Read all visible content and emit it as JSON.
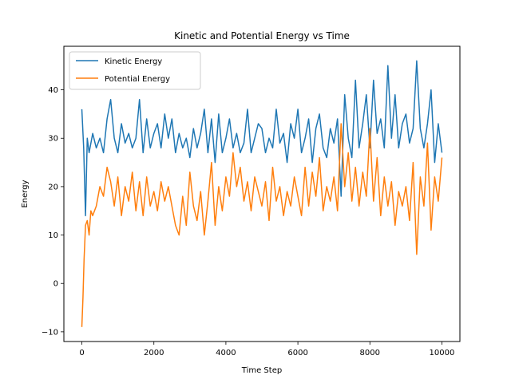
{
  "chart_data": {
    "type": "line",
    "title": "Kinetic and Potential Energy vs Time",
    "xlabel": "Time Step",
    "ylabel": "Energy",
    "xlim": [
      -500,
      10500
    ],
    "ylim": [
      -12,
      49
    ],
    "xticks": [
      0,
      2000,
      4000,
      6000,
      8000,
      10000
    ],
    "yticks": [
      -10,
      0,
      10,
      20,
      30,
      40
    ],
    "xtick_labels": [
      "0",
      "2000",
      "4000",
      "6000",
      "8000",
      "10000"
    ],
    "ytick_labels": [
      "−10",
      "0",
      "10",
      "20",
      "30",
      "40"
    ],
    "grid": false,
    "legend_position": "top-left",
    "series": [
      {
        "name": "Kinetic Energy",
        "color": "#1f77b4",
        "points": [
          [
            0,
            36
          ],
          [
            50,
            28
          ],
          [
            100,
            14
          ],
          [
            150,
            30
          ],
          [
            200,
            27
          ],
          [
            300,
            31
          ],
          [
            400,
            28
          ],
          [
            500,
            30
          ],
          [
            600,
            27
          ],
          [
            700,
            34
          ],
          [
            800,
            38
          ],
          [
            900,
            30
          ],
          [
            1000,
            27
          ],
          [
            1100,
            33
          ],
          [
            1200,
            29
          ],
          [
            1300,
            31
          ],
          [
            1400,
            28
          ],
          [
            1500,
            30
          ],
          [
            1600,
            38
          ],
          [
            1700,
            27
          ],
          [
            1800,
            34
          ],
          [
            1900,
            28
          ],
          [
            2000,
            31
          ],
          [
            2100,
            33
          ],
          [
            2200,
            28
          ],
          [
            2300,
            35
          ],
          [
            2400,
            30
          ],
          [
            2500,
            34
          ],
          [
            2600,
            27
          ],
          [
            2700,
            31
          ],
          [
            2800,
            28
          ],
          [
            2900,
            30
          ],
          [
            3000,
            26
          ],
          [
            3100,
            32
          ],
          [
            3200,
            28
          ],
          [
            3300,
            31
          ],
          [
            3400,
            36
          ],
          [
            3500,
            27
          ],
          [
            3600,
            34
          ],
          [
            3700,
            25
          ],
          [
            3800,
            35
          ],
          [
            3900,
            27
          ],
          [
            4000,
            30
          ],
          [
            4100,
            34
          ],
          [
            4200,
            28
          ],
          [
            4300,
            31
          ],
          [
            4400,
            27
          ],
          [
            4500,
            29
          ],
          [
            4600,
            36
          ],
          [
            4700,
            27
          ],
          [
            4800,
            30
          ],
          [
            4900,
            33
          ],
          [
            5000,
            32
          ],
          [
            5100,
            27
          ],
          [
            5200,
            30
          ],
          [
            5300,
            28
          ],
          [
            5400,
            36
          ],
          [
            5500,
            29
          ],
          [
            5600,
            31
          ],
          [
            5700,
            25
          ],
          [
            5800,
            33
          ],
          [
            5900,
            30
          ],
          [
            6000,
            36
          ],
          [
            6100,
            27
          ],
          [
            6200,
            30
          ],
          [
            6300,
            34
          ],
          [
            6400,
            25
          ],
          [
            6500,
            32
          ],
          [
            6600,
            35
          ],
          [
            6700,
            28
          ],
          [
            6800,
            26
          ],
          [
            6900,
            32
          ],
          [
            7000,
            29
          ],
          [
            7100,
            34
          ],
          [
            7200,
            18
          ],
          [
            7300,
            39
          ],
          [
            7400,
            30
          ],
          [
            7500,
            26
          ],
          [
            7600,
            42
          ],
          [
            7700,
            28
          ],
          [
            7800,
            33
          ],
          [
            7900,
            39
          ],
          [
            8000,
            28
          ],
          [
            8100,
            42
          ],
          [
            8200,
            31
          ],
          [
            8300,
            34
          ],
          [
            8400,
            28
          ],
          [
            8500,
            45
          ],
          [
            8600,
            30
          ],
          [
            8700,
            39
          ],
          [
            8800,
            28
          ],
          [
            8900,
            33
          ],
          [
            9000,
            35
          ],
          [
            9100,
            29
          ],
          [
            9200,
            32
          ],
          [
            9300,
            46
          ],
          [
            9400,
            32
          ],
          [
            9500,
            28
          ],
          [
            9600,
            33
          ],
          [
            9700,
            40
          ],
          [
            9800,
            25
          ],
          [
            9900,
            33
          ],
          [
            10000,
            27
          ]
        ]
      },
      {
        "name": "Potential Energy",
        "color": "#ff7f0e",
        "points": [
          [
            0,
            -9
          ],
          [
            30,
            -3
          ],
          [
            60,
            5
          ],
          [
            100,
            12
          ],
          [
            150,
            13
          ],
          [
            200,
            10
          ],
          [
            250,
            15
          ],
          [
            300,
            14
          ],
          [
            400,
            16
          ],
          [
            500,
            20
          ],
          [
            600,
            18
          ],
          [
            700,
            24
          ],
          [
            800,
            21
          ],
          [
            900,
            16
          ],
          [
            1000,
            22
          ],
          [
            1100,
            14
          ],
          [
            1200,
            20
          ],
          [
            1300,
            17
          ],
          [
            1400,
            23
          ],
          [
            1500,
            15
          ],
          [
            1600,
            21
          ],
          [
            1700,
            14
          ],
          [
            1800,
            22
          ],
          [
            1900,
            16
          ],
          [
            2000,
            19
          ],
          [
            2100,
            15
          ],
          [
            2200,
            21
          ],
          [
            2300,
            17
          ],
          [
            2400,
            20
          ],
          [
            2500,
            16
          ],
          [
            2600,
            12
          ],
          [
            2700,
            10
          ],
          [
            2800,
            18
          ],
          [
            2900,
            12
          ],
          [
            3000,
            23
          ],
          [
            3100,
            16
          ],
          [
            3200,
            13
          ],
          [
            3300,
            19
          ],
          [
            3400,
            10
          ],
          [
            3500,
            17
          ],
          [
            3600,
            25
          ],
          [
            3700,
            12
          ],
          [
            3800,
            20
          ],
          [
            3900,
            15
          ],
          [
            4000,
            22
          ],
          [
            4100,
            18
          ],
          [
            4200,
            27
          ],
          [
            4300,
            20
          ],
          [
            4400,
            24
          ],
          [
            4500,
            17
          ],
          [
            4600,
            21
          ],
          [
            4700,
            15
          ],
          [
            4800,
            22
          ],
          [
            4900,
            19
          ],
          [
            5000,
            16
          ],
          [
            5100,
            21
          ],
          [
            5200,
            13
          ],
          [
            5300,
            24
          ],
          [
            5400,
            17
          ],
          [
            5500,
            20
          ],
          [
            5600,
            14
          ],
          [
            5700,
            19
          ],
          [
            5800,
            16
          ],
          [
            5900,
            22
          ],
          [
            6000,
            18
          ],
          [
            6100,
            14
          ],
          [
            6200,
            24
          ],
          [
            6300,
            16
          ],
          [
            6400,
            23
          ],
          [
            6500,
            18
          ],
          [
            6600,
            26
          ],
          [
            6700,
            15
          ],
          [
            6800,
            20
          ],
          [
            6900,
            17
          ],
          [
            7000,
            22
          ],
          [
            7100,
            15
          ],
          [
            7200,
            33
          ],
          [
            7300,
            20
          ],
          [
            7400,
            27
          ],
          [
            7500,
            17
          ],
          [
            7600,
            24
          ],
          [
            7700,
            16
          ],
          [
            7800,
            23
          ],
          [
            7900,
            18
          ],
          [
            8000,
            32
          ],
          [
            8100,
            17
          ],
          [
            8200,
            26
          ],
          [
            8300,
            14
          ],
          [
            8400,
            22
          ],
          [
            8500,
            16
          ],
          [
            8600,
            21
          ],
          [
            8700,
            12
          ],
          [
            8800,
            19
          ],
          [
            8900,
            16
          ],
          [
            9000,
            20
          ],
          [
            9100,
            13
          ],
          [
            9200,
            25
          ],
          [
            9300,
            6
          ],
          [
            9400,
            22
          ],
          [
            9500,
            16
          ],
          [
            9600,
            29
          ],
          [
            9700,
            11
          ],
          [
            9800,
            22
          ],
          [
            9900,
            17
          ],
          [
            10000,
            26
          ]
        ]
      }
    ]
  }
}
